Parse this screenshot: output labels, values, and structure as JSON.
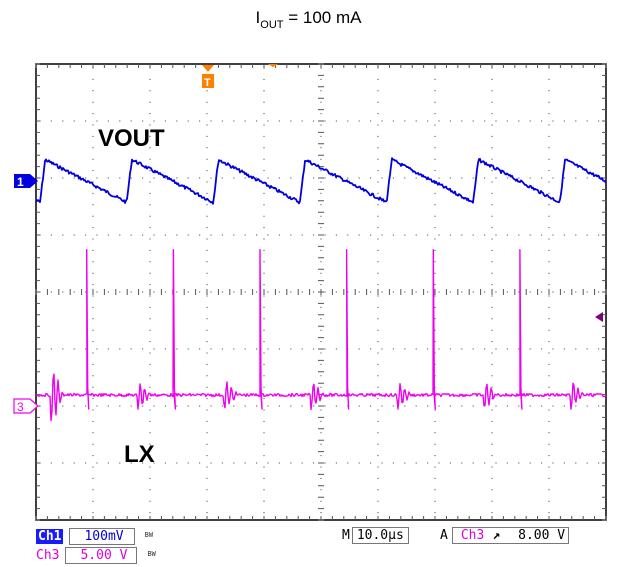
{
  "title": {
    "main": "I",
    "sub": "OUT",
    "rest": " = 100 mA"
  },
  "chart_data": {
    "type": "line",
    "title": "IOUT = 100 mA",
    "x_divisions": 10,
    "y_divisions": 8,
    "time_per_div": "10.0µs",
    "series": [
      {
        "name": "VOUT",
        "channel": "Ch1",
        "scale": "100mV",
        "color": "#0000e0",
        "shape": "sawtooth",
        "period_div": 1.52,
        "ripple_div": 0.75
      },
      {
        "name": "LX",
        "channel": "Ch3",
        "scale": "5.00 V",
        "color": "#f000f0",
        "shape": "switching-spikes",
        "period_div": 1.52,
        "spike_height_div": 2.55
      }
    ],
    "trigger": {
      "source": "Ch3",
      "edge": "rising",
      "level": "8.00 V"
    },
    "labels": {
      "vout": "VOUT",
      "lx": "LX"
    },
    "markers": {
      "ch1": "1",
      "ch3": "3",
      "trigger": "T"
    }
  },
  "status": {
    "ch1_tag": "Ch1",
    "ch1_scale": "100mV",
    "ch1_bw": "BW",
    "ch3_tag": "Ch3",
    "ch3_scale": "5.00 V",
    "ch3_bw": "BW",
    "timebase_prefix": "M",
    "timebase": "10.0µs",
    "trigger_prefix": "A",
    "trigger_source": "Ch3",
    "trigger_slope": "↗",
    "trigger_level": "8.00 V"
  },
  "colors": {
    "ch1": "#0000e0",
    "ch3": "#f000f0",
    "trigger": "#ff8000",
    "grid": "#555555"
  }
}
